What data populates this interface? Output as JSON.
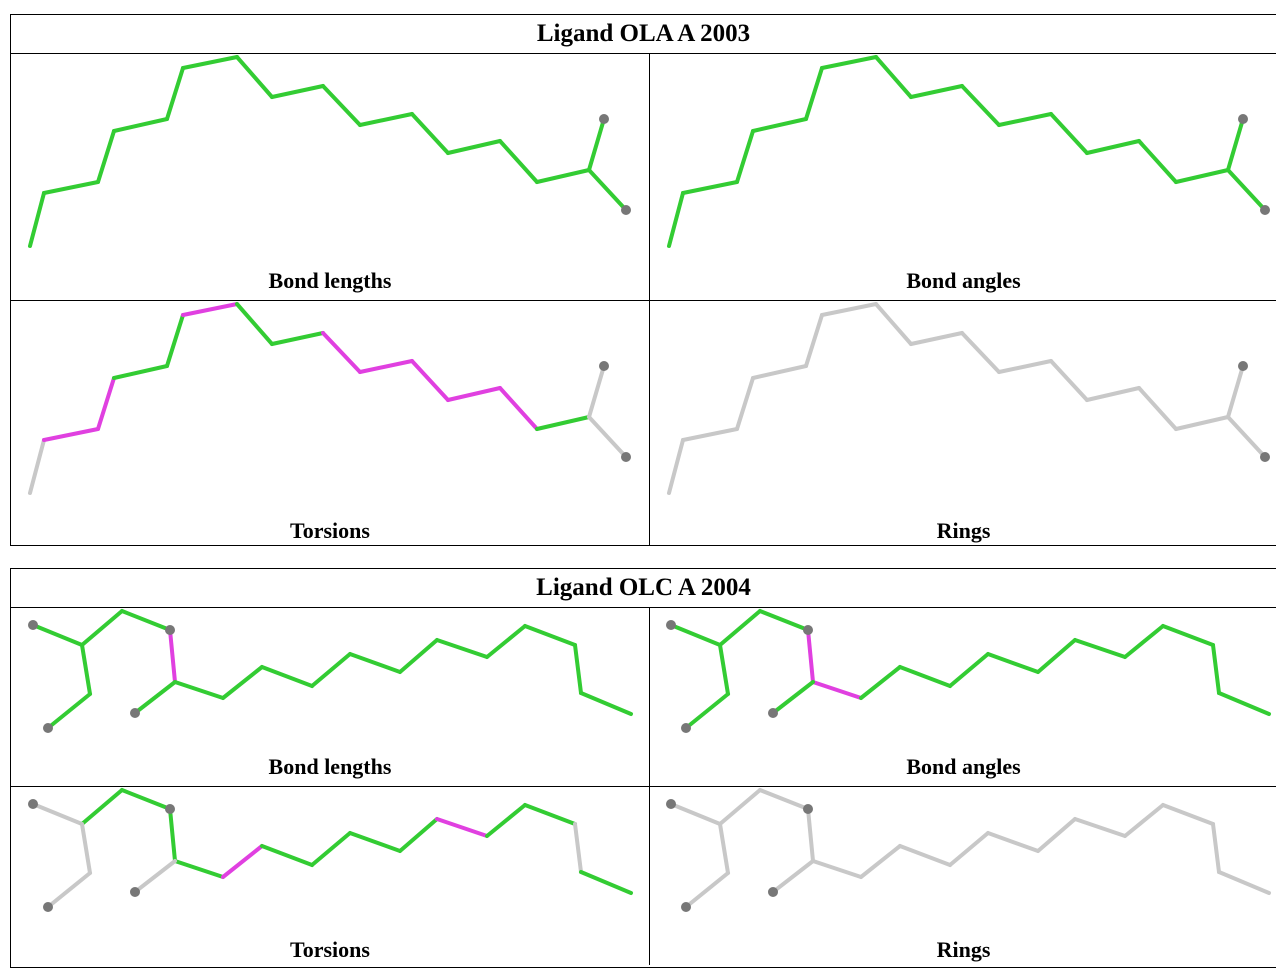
{
  "ligands": [
    {
      "title": "Ligand OLA A 2003",
      "panels": [
        "Bond lengths",
        "Bond angles",
        "Torsions",
        "Rings"
      ]
    },
    {
      "title": "Ligand OLC A 2004",
      "panels": [
        "Bond lengths",
        "Bond angles",
        "Torsions",
        "Rings"
      ]
    }
  ]
}
